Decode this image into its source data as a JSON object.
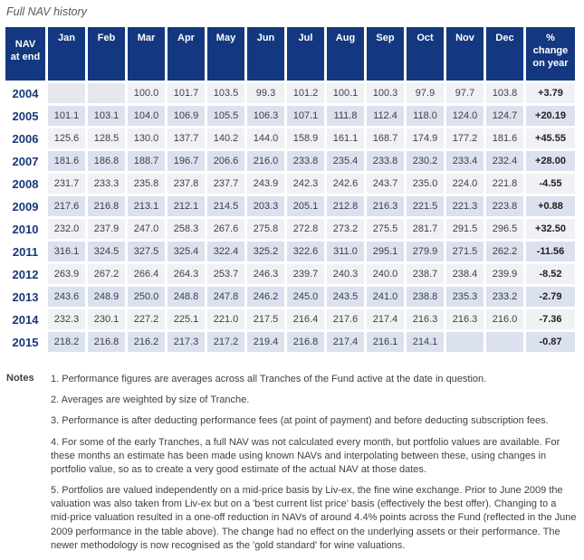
{
  "title": "Full NAV history",
  "colors": {
    "header_bg": "#14387f",
    "row_light": "#eff1f5",
    "row_dark": "#dbe1ee",
    "early_empty_cell": "#e6e8ed",
    "year_text": "#17387b",
    "header_text": "#ffffff"
  },
  "table": {
    "header": {
      "nav_col": "NAV\nat end",
      "months": [
        "Jan",
        "Feb",
        "Mar",
        "Apr",
        "May",
        "Jun",
        "Jul",
        "Aug",
        "Sep",
        "Oct",
        "Nov",
        "Dec"
      ],
      "change_col": "%\nchange\non year"
    },
    "rows": [
      {
        "year": "2004",
        "values": [
          "",
          "",
          "100.0",
          "101.7",
          "103.5",
          "99.3",
          "101.2",
          "100.1",
          "100.3",
          "97.9",
          "97.7",
          "103.8"
        ],
        "change": "+3.79"
      },
      {
        "year": "2005",
        "values": [
          "101.1",
          "103.1",
          "104.0",
          "106.9",
          "105.5",
          "106.3",
          "107.1",
          "111.8",
          "112.4",
          "118.0",
          "124.0",
          "124.7"
        ],
        "change": "+20.19"
      },
      {
        "year": "2006",
        "values": [
          "125.6",
          "128.5",
          "130.0",
          "137.7",
          "140.2",
          "144.0",
          "158.9",
          "161.1",
          "168.7",
          "174.9",
          "177.2",
          "181.6"
        ],
        "change": "+45.55"
      },
      {
        "year": "2007",
        "values": [
          "181.6",
          "186.8",
          "188.7",
          "196.7",
          "206.6",
          "216.0",
          "233.8",
          "235.4",
          "233.8",
          "230.2",
          "233.4",
          "232.4"
        ],
        "change": "+28.00"
      },
      {
        "year": "2008",
        "values": [
          "231.7",
          "233.3",
          "235.8",
          "237.8",
          "237.7",
          "243.9",
          "242.3",
          "242.6",
          "243.7",
          "235.0",
          "224.0",
          "221.8"
        ],
        "change": "-4.55"
      },
      {
        "year": "2009",
        "values": [
          "217.6",
          "216.8",
          "213.1",
          "212.1",
          "214.5",
          "203.3",
          "205.1",
          "212.8",
          "216.3",
          "221.5",
          "221.3",
          "223.8"
        ],
        "change": "+0.88"
      },
      {
        "year": "2010",
        "values": [
          "232.0",
          "237.9",
          "247.0",
          "258.3",
          "267.6",
          "275.8",
          "272.8",
          "273.2",
          "275.5",
          "281.7",
          "291.5",
          "296.5"
        ],
        "change": "+32.50"
      },
      {
        "year": "2011",
        "values": [
          "316.1",
          "324.5",
          "327.5",
          "325.4",
          "322.4",
          "325.2",
          "322.6",
          "311.0",
          "295.1",
          "279.9",
          "271.5",
          "262.2"
        ],
        "change": "-11.56"
      },
      {
        "year": "2012",
        "values": [
          "263.9",
          "267.2",
          "266.4",
          "264.3",
          "253.7",
          "246.3",
          "239.7",
          "240.3",
          "240.0",
          "238.7",
          "238.4",
          "239.9"
        ],
        "change": "-8.52"
      },
      {
        "year": "2013",
        "values": [
          "243.6",
          "248.9",
          "250.0",
          "248.8",
          "247.8",
          "246.2",
          "245.0",
          "243.5",
          "241.0",
          "238.8",
          "235.3",
          "233.2"
        ],
        "change": "-2.79"
      },
      {
        "year": "2014",
        "values": [
          "232.3",
          "230.1",
          "227.2",
          "225.1",
          "221.0",
          "217.5",
          "216.4",
          "217.6",
          "217.4",
          "216.3",
          "216.3",
          "216.0"
        ],
        "change": "-7.36"
      },
      {
        "year": "2015",
        "values": [
          "218.2",
          "216.8",
          "216.2",
          "217.3",
          "217.2",
          "219.4",
          "216.8",
          "217.4",
          "216.1",
          "214.1",
          "",
          ""
        ],
        "change": "-0.87"
      }
    ]
  },
  "notes": {
    "label": "Notes",
    "items": [
      "1. Performance figures are averages across all Tranches of the Fund active at the date in question.",
      "2. Averages are weighted by size of Tranche.",
      "3. Performance is after deducting performance fees (at point of payment) and before deducting subscription fees.",
      "4. For some of the early Tranches, a full NAV was not calculated every month, but portfolio values are available. For these months an estimate has been made using known NAVs and interpolating between these, using changes in portfolio value, so as to create a very good estimate of the actual NAV at those dates.",
      "5. Portfolios are valued independently on a mid-price basis by Liv-ex, the fine wine exchange. Prior to June 2009 the valuation was also taken from Liv-ex but on a 'best current list price' basis (effectively the best offer). Changing to a mid-price valuation resulted in a one-off reduction in NAVs of around 4.4% points across the Fund (reflected in the June 2009 performance in the table above). The change had no effect on the underlying assets or their performance. The newer methodology is now recognised as the 'gold standard' for wine valuations."
    ]
  }
}
